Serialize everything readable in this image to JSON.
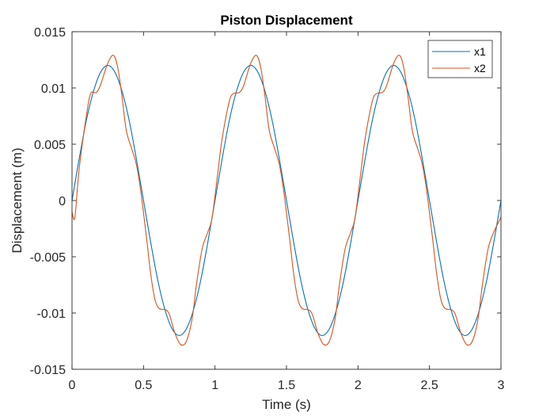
{
  "chart_data": {
    "type": "line",
    "title": "Piston Displacement",
    "xlabel": "Time (s)",
    "ylabel": "Displacement (m)",
    "xlim": [
      0,
      3
    ],
    "ylim": [
      -0.015,
      0.015
    ],
    "grid": false,
    "legend_position": "top-right",
    "xticks": [
      0,
      0.5,
      1,
      1.5,
      2,
      2.5,
      3
    ],
    "xtick_labels": [
      "0",
      "0.5",
      "1",
      "1.5",
      "2",
      "2.5",
      "3"
    ],
    "yticks": [
      -0.015,
      -0.01,
      -0.005,
      0,
      0.005,
      0.01,
      0.015
    ],
    "ytick_labels": [
      "-0.015",
      "-0.01",
      "-0.005",
      "0",
      "0.005",
      "0.01",
      "0.015"
    ],
    "series": [
      {
        "name": "x1",
        "color": "#0072BD",
        "x": [
          0,
          0.05,
          0.1,
          0.15,
          0.2,
          0.25,
          0.3,
          0.35,
          0.4,
          0.45,
          0.5,
          0.55,
          0.6,
          0.65,
          0.7,
          0.75,
          0.8,
          0.85,
          0.9,
          0.95,
          1,
          1.05,
          1.1,
          1.15,
          1.2,
          1.25,
          1.3,
          1.35,
          1.4,
          1.45,
          1.5,
          1.55,
          1.6,
          1.65,
          1.7,
          1.75,
          1.8,
          1.85,
          1.9,
          1.95,
          2,
          2.05,
          2.1,
          2.15,
          2.2,
          2.25,
          2.3,
          2.35,
          2.4,
          2.45,
          2.5,
          2.55,
          2.6,
          2.65,
          2.7,
          2.75,
          2.8,
          2.85,
          2.9,
          2.95,
          3
        ],
        "y": [
          0,
          0.0037,
          0.0071,
          0.0097,
          0.0114,
          0.012,
          0.0114,
          0.0097,
          0.0071,
          0.0037,
          0,
          -0.0037,
          -0.0071,
          -0.0097,
          -0.0114,
          -0.012,
          -0.0114,
          -0.0097,
          -0.0071,
          -0.0037,
          0,
          0.0037,
          0.0071,
          0.0097,
          0.0114,
          0.012,
          0.0114,
          0.0097,
          0.0071,
          0.0037,
          0,
          -0.0037,
          -0.0071,
          -0.0097,
          -0.0114,
          -0.012,
          -0.0114,
          -0.0097,
          -0.0071,
          -0.0037,
          0,
          0.0037,
          0.0071,
          0.0097,
          0.0114,
          0.012,
          0.0114,
          0.0097,
          0.0071,
          0.0037,
          0,
          -0.0037,
          -0.0071,
          -0.0097,
          -0.0114,
          -0.012,
          -0.0114,
          -0.0097,
          -0.0071,
          -0.0037,
          0
        ]
      },
      {
        "name": "x2",
        "color": "#D95319",
        "x": [
          0,
          0.02,
          0.05,
          0.1,
          0.13,
          0.17,
          0.2,
          0.25,
          0.29,
          0.32,
          0.35,
          0.38,
          0.42,
          0.45,
          0.48,
          0.52,
          0.55,
          0.58,
          0.61,
          0.65,
          0.68,
          0.72,
          0.76,
          0.8,
          0.84,
          0.87,
          0.91,
          0.95,
          0.98,
          1.02,
          1.05,
          1.1,
          1.13,
          1.17,
          1.2,
          1.25,
          1.29,
          1.32,
          1.35,
          1.38,
          1.42,
          1.45,
          1.48,
          1.52,
          1.55,
          1.58,
          1.61,
          1.65,
          1.68,
          1.72,
          1.76,
          1.8,
          1.84,
          1.87,
          1.91,
          1.95,
          1.98,
          2.02,
          2.05,
          2.1,
          2.13,
          2.17,
          2.2,
          2.25,
          2.29,
          2.32,
          2.35,
          2.38,
          2.42,
          2.45,
          2.48,
          2.52,
          2.55,
          2.58,
          2.61,
          2.65,
          2.68,
          2.72,
          2.76,
          2.8,
          2.84,
          2.87,
          2.91,
          2.95,
          3
        ],
        "y": [
          -0.001,
          -0.0015,
          0.0028,
          0.0075,
          0.0095,
          0.0096,
          0.0103,
          0.0122,
          0.0129,
          0.0118,
          0.0092,
          0.0062,
          0.0045,
          0.0032,
          0.0009,
          -0.0032,
          -0.0065,
          -0.0088,
          -0.0096,
          -0.0097,
          -0.0101,
          -0.0118,
          -0.0128,
          -0.0125,
          -0.0105,
          -0.0075,
          -0.0043,
          -0.0028,
          -0.0015,
          0.0025,
          0.0055,
          0.0088,
          0.0095,
          0.0096,
          0.0102,
          0.0122,
          0.0129,
          0.0118,
          0.0092,
          0.0062,
          0.0045,
          0.0032,
          0.0009,
          -0.0032,
          -0.0065,
          -0.0088,
          -0.0096,
          -0.0097,
          -0.0101,
          -0.0118,
          -0.0128,
          -0.0125,
          -0.0105,
          -0.0075,
          -0.0043,
          -0.0028,
          -0.0015,
          0.0025,
          0.0055,
          0.0088,
          0.0095,
          0.0096,
          0.0102,
          0.0122,
          0.0129,
          0.0118,
          0.0092,
          0.0062,
          0.0045,
          0.0032,
          0.0009,
          -0.0032,
          -0.0065,
          -0.0088,
          -0.0096,
          -0.0097,
          -0.0101,
          -0.0118,
          -0.0128,
          -0.0125,
          -0.0105,
          -0.0075,
          -0.0043,
          -0.0028,
          -0.0015
        ]
      }
    ]
  }
}
